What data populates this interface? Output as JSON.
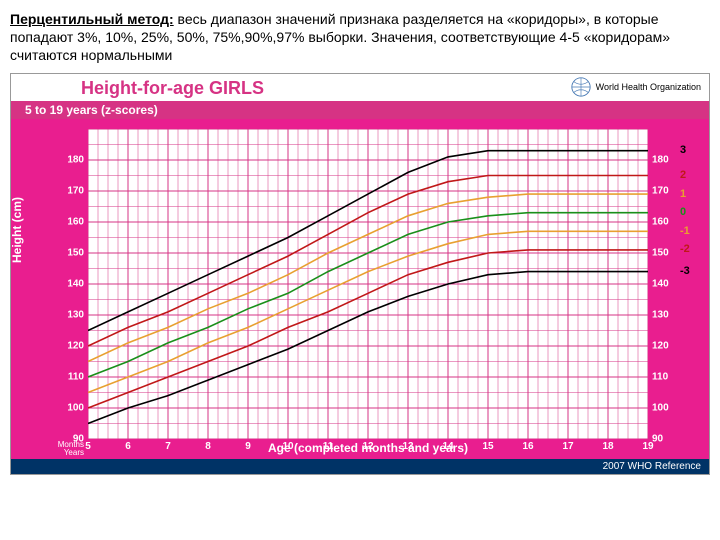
{
  "description": {
    "bold": "Перцентильный метод:",
    "rest": " весь диапазон значений признака разделяется на «коридоры», в которые попадают  3%, 10%, 25%, 50%, 75%,90%,97% выборки. Значения, соответствующие  4-5 «коридорам» считаются нормальными"
  },
  "title": "Height-for-age  GIRLS",
  "subtitle": "5 to 19 years (z-scores)",
  "logo_text": "World Health Organization",
  "y_label": "Height (cm)",
  "x_label": "Age (completed months and years)",
  "months_label": "Months\nYears",
  "footer": "2007 WHO Reference",
  "chart": {
    "type": "line",
    "xlim": [
      5,
      19
    ],
    "ylim": [
      90,
      190
    ],
    "yticks": [
      90,
      100,
      110,
      120,
      130,
      140,
      150,
      160,
      170,
      180
    ],
    "xticks": [
      5,
      6,
      7,
      8,
      9,
      10,
      11,
      12,
      13,
      14,
      15,
      16,
      17,
      18,
      19
    ],
    "bg": "#ffffff",
    "grid_color": "#d63384",
    "curves": [
      {
        "label": "3",
        "color": "#000000",
        "end_y": 183,
        "pts": [
          [
            5,
            125
          ],
          [
            6,
            131
          ],
          [
            7,
            137
          ],
          [
            8,
            143
          ],
          [
            9,
            149
          ],
          [
            10,
            155
          ],
          [
            11,
            162
          ],
          [
            12,
            169
          ],
          [
            13,
            176
          ],
          [
            14,
            181
          ],
          [
            15,
            183
          ],
          [
            16,
            183
          ],
          [
            17,
            183
          ],
          [
            18,
            183
          ],
          [
            19,
            183
          ]
        ]
      },
      {
        "label": "2",
        "color": "#c01818",
        "end_y": 175,
        "pts": [
          [
            5,
            120
          ],
          [
            6,
            126
          ],
          [
            7,
            131
          ],
          [
            8,
            137
          ],
          [
            9,
            143
          ],
          [
            10,
            149
          ],
          [
            11,
            156
          ],
          [
            12,
            163
          ],
          [
            13,
            169
          ],
          [
            14,
            173
          ],
          [
            15,
            175
          ],
          [
            16,
            175
          ],
          [
            17,
            175
          ],
          [
            18,
            175
          ],
          [
            19,
            175
          ]
        ]
      },
      {
        "label": "1",
        "color": "#e8a030",
        "end_y": 169,
        "pts": [
          [
            5,
            115
          ],
          [
            6,
            121
          ],
          [
            7,
            126
          ],
          [
            8,
            132
          ],
          [
            9,
            137
          ],
          [
            10,
            143
          ],
          [
            11,
            150
          ],
          [
            12,
            156
          ],
          [
            13,
            162
          ],
          [
            14,
            166
          ],
          [
            15,
            168
          ],
          [
            16,
            169
          ],
          [
            17,
            169
          ],
          [
            18,
            169
          ],
          [
            19,
            169
          ]
        ]
      },
      {
        "label": "0",
        "color": "#1a8f1a",
        "end_y": 163,
        "pts": [
          [
            5,
            110
          ],
          [
            6,
            115
          ],
          [
            7,
            121
          ],
          [
            8,
            126
          ],
          [
            9,
            132
          ],
          [
            10,
            137
          ],
          [
            11,
            144
          ],
          [
            12,
            150
          ],
          [
            13,
            156
          ],
          [
            14,
            160
          ],
          [
            15,
            162
          ],
          [
            16,
            163
          ],
          [
            17,
            163
          ],
          [
            18,
            163
          ],
          [
            19,
            163
          ]
        ]
      },
      {
        "label": "-1",
        "color": "#e8a030",
        "end_y": 157,
        "pts": [
          [
            5,
            105
          ],
          [
            6,
            110
          ],
          [
            7,
            115
          ],
          [
            8,
            121
          ],
          [
            9,
            126
          ],
          [
            10,
            132
          ],
          [
            11,
            138
          ],
          [
            12,
            144
          ],
          [
            13,
            149
          ],
          [
            14,
            153
          ],
          [
            15,
            156
          ],
          [
            16,
            157
          ],
          [
            17,
            157
          ],
          [
            18,
            157
          ],
          [
            19,
            157
          ]
        ]
      },
      {
        "label": "-2",
        "color": "#c01818",
        "end_y": 151,
        "pts": [
          [
            5,
            100
          ],
          [
            6,
            105
          ],
          [
            7,
            110
          ],
          [
            8,
            115
          ],
          [
            9,
            120
          ],
          [
            10,
            126
          ],
          [
            11,
            131
          ],
          [
            12,
            137
          ],
          [
            13,
            143
          ],
          [
            14,
            147
          ],
          [
            15,
            150
          ],
          [
            16,
            151
          ],
          [
            17,
            151
          ],
          [
            18,
            151
          ],
          [
            19,
            151
          ]
        ]
      },
      {
        "label": "-3",
        "color": "#000000",
        "end_y": 144,
        "pts": [
          [
            5,
            95
          ],
          [
            6,
            100
          ],
          [
            7,
            104
          ],
          [
            8,
            109
          ],
          [
            9,
            114
          ],
          [
            10,
            119
          ],
          [
            11,
            125
          ],
          [
            12,
            131
          ],
          [
            13,
            136
          ],
          [
            14,
            140
          ],
          [
            15,
            143
          ],
          [
            16,
            144
          ],
          [
            17,
            144
          ],
          [
            18,
            144
          ],
          [
            19,
            144
          ]
        ]
      }
    ]
  }
}
